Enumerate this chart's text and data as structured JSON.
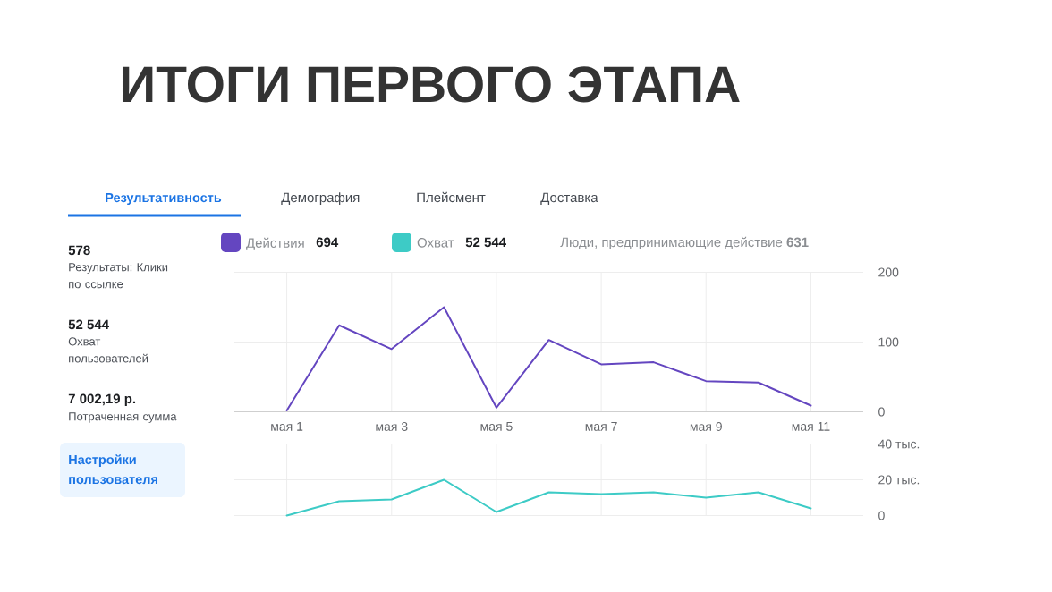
{
  "chart_data": [
    {
      "type": "other",
      "title": "ИТОГИ ПЕРВОГО ЭТАПА",
      "annotations": [
        "Результативность",
        "Демография",
        "Плейсмент",
        "Доставка",
        "578",
        "Результаты: Клики по ссылке",
        "52 544",
        "Охват пользователей",
        "7 002,19 р.",
        "Потраченная сумма",
        "Настройки пользователя"
      ]
    },
    {
      "type": "line",
      "categories": [
        "мая 1",
        null,
        "мая 3",
        null,
        "мая 5",
        null,
        "мая 7",
        null,
        "мая 9",
        null,
        "мая 11"
      ],
      "series": [
        {
          "name": "Действия",
          "color": "#6446c0",
          "values": [
            2,
            124,
            90,
            150,
            6,
            103,
            68,
            71,
            44,
            42,
            9
          ]
        }
      ],
      "ylim": [
        0,
        200
      ],
      "yticks": [
        0,
        100,
        200
      ],
      "grid": true,
      "legend": "top left",
      "annotations": [
        "694",
        "Люди, предпринимающие действие **631**"
      ]
    },
    {
      "type": "line",
      "categories": [
        null,
        null,
        null,
        null,
        null,
        null,
        null,
        null,
        null,
        null,
        null
      ],
      "series": [
        {
          "name": "Охват",
          "color": "#3dcbc6",
          "values": [
            0,
            8,
            9,
            20,
            2,
            13,
            12,
            13,
            10,
            13,
            4
          ]
        }
      ],
      "ylim": [
        0,
        40
      ],
      "yticks": [
        0,
        {
          "value": 20,
          "label": "20 тыс."
        },
        {
          "value": 40,
          "label": "40 тыс."
        }
      ],
      "grid": true,
      "legend": "top left",
      "tick_labels": "y",
      "annotations": [
        "52 544"
      ]
    }
  ]
}
